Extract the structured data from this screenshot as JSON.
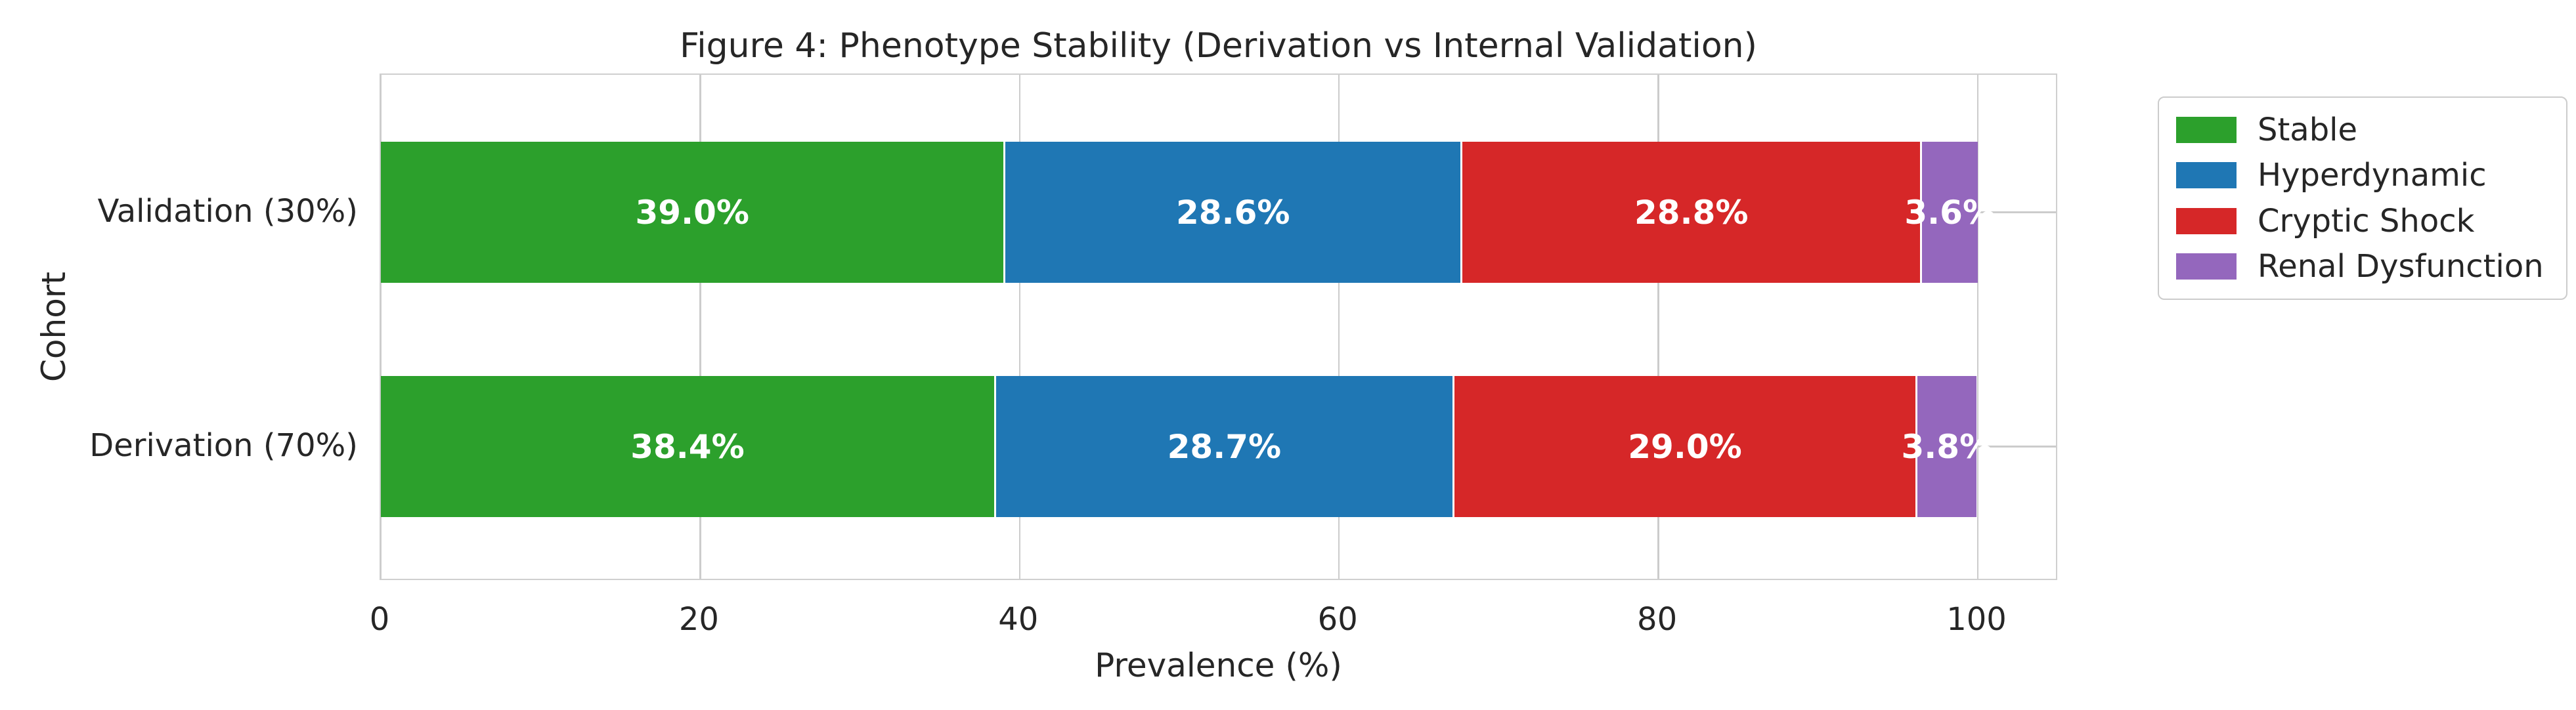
{
  "chart_data": {
    "type": "bar",
    "orientation": "horizontal",
    "stacked": true,
    "title": "Figure 4: Phenotype Stability (Derivation vs Internal Validation)",
    "xlabel": "Prevalence (%)",
    "ylabel": "Cohort",
    "categories": [
      "Validation (30%)",
      "Derivation (70%)"
    ],
    "series": [
      {
        "name": "Stable",
        "color": "#2ca02c",
        "values": [
          39.0,
          38.4
        ]
      },
      {
        "name": "Hyperdynamic",
        "color": "#1f77b4",
        "values": [
          28.6,
          28.7
        ]
      },
      {
        "name": "Cryptic Shock",
        "color": "#d62728",
        "values": [
          28.8,
          29.0
        ]
      },
      {
        "name": "Renal Dysfunction",
        "color": "#9467bd",
        "values": [
          3.6,
          3.8
        ]
      }
    ],
    "bar_labels": [
      [
        "39.0%",
        "28.6%",
        "28.8%",
        "3.6%"
      ],
      [
        "38.4%",
        "28.7%",
        "29.0%",
        "3.8%"
      ]
    ],
    "x_ticks": [
      0,
      20,
      40,
      60,
      80,
      100
    ],
    "xlim": [
      0,
      105
    ],
    "grid": true,
    "legend_position": "outside-upper-right",
    "legend_entries": [
      "Stable",
      "Hyperdynamic",
      "Cryptic Shock",
      "Renal Dysfunction"
    ],
    "colors": {
      "text": "#262626",
      "grid": "#cccccc",
      "bar_label_text": "#ffffff",
      "background": "#ffffff"
    }
  }
}
